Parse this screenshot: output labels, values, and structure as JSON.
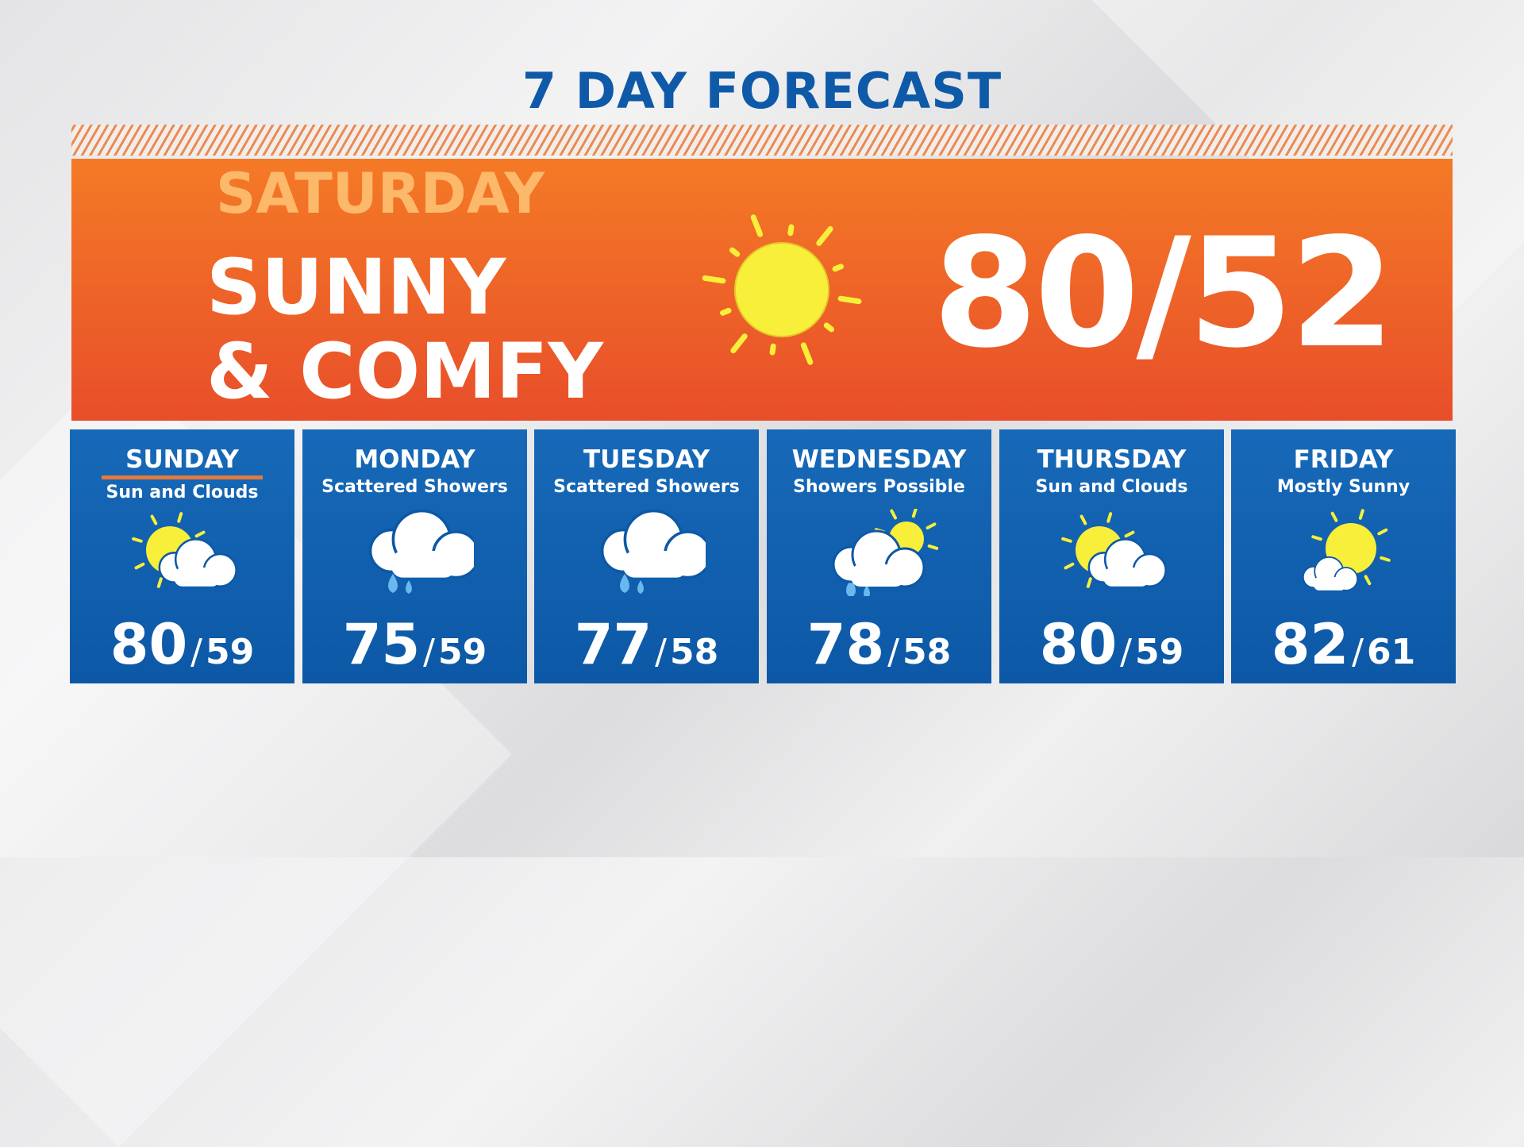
{
  "title": "7 DAY FORECAST",
  "featured": {
    "day": "SATURDAY",
    "headline_line1": "SUNNY",
    "headline_line2": "& COMFY",
    "icon": "sun-icon",
    "temps": "80/52",
    "high": 80,
    "low": 52
  },
  "colors": {
    "title": "#0f5aa8",
    "banner_top": "#f47a26",
    "banner_bottom": "#e84e2a",
    "card": "#1769b8",
    "sun": "#f8ef3a",
    "rain": "#6ab8ee",
    "underline": "#e57a3c"
  },
  "days": [
    {
      "name": "SUNDAY",
      "desc": "Sun and Clouds",
      "icon": "partly-cloudy",
      "high": "80",
      "low": "59",
      "selected": true
    },
    {
      "name": "MONDAY",
      "desc": "Scattered Showers",
      "icon": "showers",
      "high": "75",
      "low": "59"
    },
    {
      "name": "TUESDAY",
      "desc": "Scattered Showers",
      "icon": "showers",
      "high": "77",
      "low": "58"
    },
    {
      "name": "WEDNESDAY",
      "desc": "Showers Possible",
      "icon": "sun-showers",
      "high": "78",
      "low": "58"
    },
    {
      "name": "THURSDAY",
      "desc": "Sun and Clouds",
      "icon": "partly-cloudy",
      "high": "80",
      "low": "59"
    },
    {
      "name": "FRIDAY",
      "desc": "Mostly Sunny",
      "icon": "mostly-sunny",
      "high": "82",
      "low": "61"
    }
  ]
}
